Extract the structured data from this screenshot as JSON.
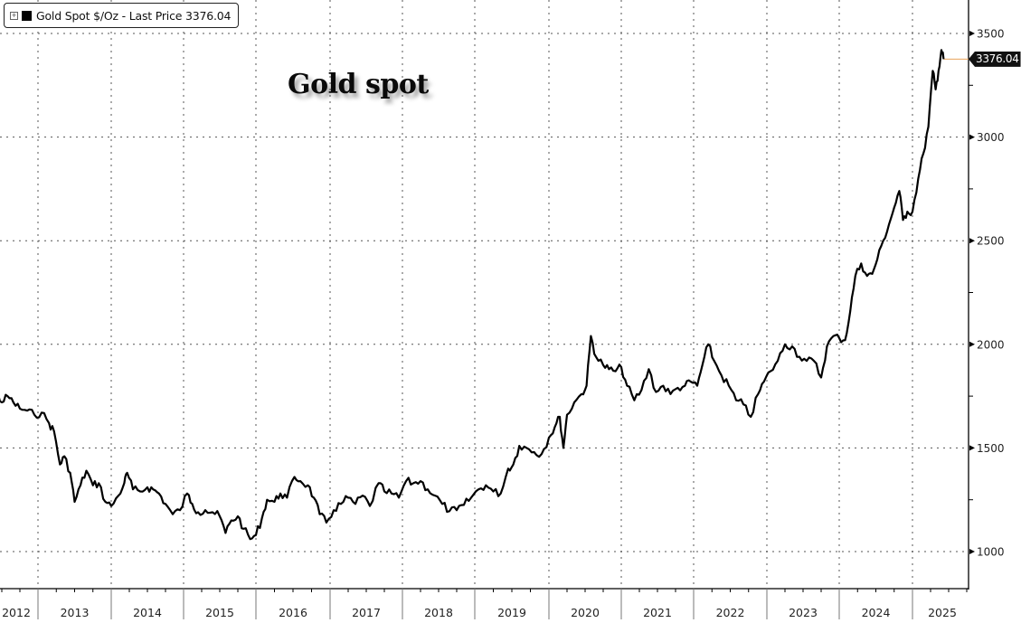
{
  "legend": {
    "expand_icon": "plus-box-icon",
    "label": "Gold Spot $/Oz - Last Price 3376.04",
    "swatch_color": "#000000"
  },
  "title": "Gold spot",
  "last_price_tag": "3376.04",
  "colors": {
    "line": "#000000",
    "last_price_line": "#e8a35a",
    "grid": "#555555",
    "axis": "#000000",
    "background": "#ffffff"
  },
  "chart_data": {
    "type": "line",
    "title": "Gold spot",
    "series": [
      {
        "name": "Gold Spot $/Oz",
        "last_value": 3376.04,
        "points": [
          {
            "x": 2012.0,
            "y": 1590
          },
          {
            "x": 2012.1,
            "y": 1640
          },
          {
            "x": 2012.2,
            "y": 1660
          },
          {
            "x": 2012.28,
            "y": 1700
          },
          {
            "x": 2012.35,
            "y": 1780
          },
          {
            "x": 2012.42,
            "y": 1770
          },
          {
            "x": 2012.5,
            "y": 1720
          },
          {
            "x": 2012.58,
            "y": 1750
          },
          {
            "x": 2012.66,
            "y": 1720
          },
          {
            "x": 2012.75,
            "y": 1690
          },
          {
            "x": 2012.85,
            "y": 1680
          },
          {
            "x": 2012.95,
            "y": 1660
          },
          {
            "x": 2013.05,
            "y": 1670
          },
          {
            "x": 2013.15,
            "y": 1620
          },
          {
            "x": 2013.22,
            "y": 1580
          },
          {
            "x": 2013.3,
            "y": 1420
          },
          {
            "x": 2013.36,
            "y": 1460
          },
          {
            "x": 2013.44,
            "y": 1380
          },
          {
            "x": 2013.5,
            "y": 1240
          },
          {
            "x": 2013.58,
            "y": 1320
          },
          {
            "x": 2013.66,
            "y": 1390
          },
          {
            "x": 2013.75,
            "y": 1320
          },
          {
            "x": 2013.83,
            "y": 1330
          },
          {
            "x": 2013.92,
            "y": 1240
          },
          {
            "x": 2014.0,
            "y": 1220
          },
          {
            "x": 2014.1,
            "y": 1270
          },
          {
            "x": 2014.18,
            "y": 1330
          },
          {
            "x": 2014.22,
            "y": 1380
          },
          {
            "x": 2014.3,
            "y": 1300
          },
          {
            "x": 2014.4,
            "y": 1290
          },
          {
            "x": 2014.5,
            "y": 1310
          },
          {
            "x": 2014.58,
            "y": 1300
          },
          {
            "x": 2014.66,
            "y": 1280
          },
          {
            "x": 2014.75,
            "y": 1230
          },
          {
            "x": 2014.85,
            "y": 1180
          },
          {
            "x": 2014.95,
            "y": 1200
          },
          {
            "x": 2015.05,
            "y": 1280
          },
          {
            "x": 2015.12,
            "y": 1230
          },
          {
            "x": 2015.2,
            "y": 1190
          },
          {
            "x": 2015.3,
            "y": 1200
          },
          {
            "x": 2015.4,
            "y": 1190
          },
          {
            "x": 2015.5,
            "y": 1170
          },
          {
            "x": 2015.58,
            "y": 1090
          },
          {
            "x": 2015.66,
            "y": 1150
          },
          {
            "x": 2015.75,
            "y": 1170
          },
          {
            "x": 2015.83,
            "y": 1110
          },
          {
            "x": 2015.92,
            "y": 1060
          },
          {
            "x": 2016.0,
            "y": 1080
          },
          {
            "x": 2016.08,
            "y": 1160
          },
          {
            "x": 2016.15,
            "y": 1250
          },
          {
            "x": 2016.25,
            "y": 1240
          },
          {
            "x": 2016.33,
            "y": 1280
          },
          {
            "x": 2016.42,
            "y": 1260
          },
          {
            "x": 2016.52,
            "y": 1360
          },
          {
            "x": 2016.6,
            "y": 1340
          },
          {
            "x": 2016.7,
            "y": 1320
          },
          {
            "x": 2016.78,
            "y": 1260
          },
          {
            "x": 2016.86,
            "y": 1180
          },
          {
            "x": 2016.95,
            "y": 1140
          },
          {
            "x": 2017.05,
            "y": 1200
          },
          {
            "x": 2017.15,
            "y": 1230
          },
          {
            "x": 2017.25,
            "y": 1260
          },
          {
            "x": 2017.35,
            "y": 1230
          },
          {
            "x": 2017.45,
            "y": 1270
          },
          {
            "x": 2017.55,
            "y": 1220
          },
          {
            "x": 2017.67,
            "y": 1330
          },
          {
            "x": 2017.75,
            "y": 1290
          },
          {
            "x": 2017.85,
            "y": 1280
          },
          {
            "x": 2017.95,
            "y": 1260
          },
          {
            "x": 2018.05,
            "y": 1340
          },
          {
            "x": 2018.15,
            "y": 1330
          },
          {
            "x": 2018.25,
            "y": 1340
          },
          {
            "x": 2018.35,
            "y": 1300
          },
          {
            "x": 2018.45,
            "y": 1270
          },
          {
            "x": 2018.55,
            "y": 1230
          },
          {
            "x": 2018.65,
            "y": 1195
          },
          {
            "x": 2018.75,
            "y": 1200
          },
          {
            "x": 2018.85,
            "y": 1225
          },
          {
            "x": 2018.95,
            "y": 1260
          },
          {
            "x": 2019.05,
            "y": 1300
          },
          {
            "x": 2019.15,
            "y": 1320
          },
          {
            "x": 2019.25,
            "y": 1290
          },
          {
            "x": 2019.35,
            "y": 1280
          },
          {
            "x": 2019.45,
            "y": 1400
          },
          {
            "x": 2019.52,
            "y": 1420
          },
          {
            "x": 2019.6,
            "y": 1510
          },
          {
            "x": 2019.7,
            "y": 1500
          },
          {
            "x": 2019.8,
            "y": 1480
          },
          {
            "x": 2019.9,
            "y": 1470
          },
          {
            "x": 2020.0,
            "y": 1550
          },
          {
            "x": 2020.08,
            "y": 1600
          },
          {
            "x": 2020.15,
            "y": 1650
          },
          {
            "x": 2020.2,
            "y": 1500
          },
          {
            "x": 2020.25,
            "y": 1660
          },
          {
            "x": 2020.35,
            "y": 1720
          },
          {
            "x": 2020.45,
            "y": 1760
          },
          {
            "x": 2020.52,
            "y": 1800
          },
          {
            "x": 2020.58,
            "y": 2040
          },
          {
            "x": 2020.65,
            "y": 1940
          },
          {
            "x": 2020.75,
            "y": 1900
          },
          {
            "x": 2020.83,
            "y": 1880
          },
          {
            "x": 2020.92,
            "y": 1870
          },
          {
            "x": 2021.0,
            "y": 1890
          },
          {
            "x": 2021.08,
            "y": 1800
          },
          {
            "x": 2021.18,
            "y": 1730
          },
          {
            "x": 2021.28,
            "y": 1780
          },
          {
            "x": 2021.38,
            "y": 1880
          },
          {
            "x": 2021.48,
            "y": 1770
          },
          {
            "x": 2021.58,
            "y": 1800
          },
          {
            "x": 2021.68,
            "y": 1760
          },
          {
            "x": 2021.78,
            "y": 1790
          },
          {
            "x": 2021.88,
            "y": 1800
          },
          {
            "x": 2021.96,
            "y": 1820
          },
          {
            "x": 2022.05,
            "y": 1800
          },
          {
            "x": 2022.12,
            "y": 1900
          },
          {
            "x": 2022.2,
            "y": 2000
          },
          {
            "x": 2022.28,
            "y": 1920
          },
          {
            "x": 2022.38,
            "y": 1850
          },
          {
            "x": 2022.48,
            "y": 1800
          },
          {
            "x": 2022.58,
            "y": 1730
          },
          {
            "x": 2022.68,
            "y": 1710
          },
          {
            "x": 2022.78,
            "y": 1650
          },
          {
            "x": 2022.88,
            "y": 1760
          },
          {
            "x": 2022.96,
            "y": 1820
          },
          {
            "x": 2023.05,
            "y": 1870
          },
          {
            "x": 2023.15,
            "y": 1920
          },
          {
            "x": 2023.25,
            "y": 2000
          },
          {
            "x": 2023.35,
            "y": 1990
          },
          {
            "x": 2023.45,
            "y": 1940
          },
          {
            "x": 2023.55,
            "y": 1920
          },
          {
            "x": 2023.65,
            "y": 1920
          },
          {
            "x": 2023.75,
            "y": 1840
          },
          {
            "x": 2023.83,
            "y": 1990
          },
          {
            "x": 2023.92,
            "y": 2040
          },
          {
            "x": 2024.0,
            "y": 2030
          },
          {
            "x": 2024.08,
            "y": 2020
          },
          {
            "x": 2024.15,
            "y": 2160
          },
          {
            "x": 2024.22,
            "y": 2330
          },
          {
            "x": 2024.3,
            "y": 2390
          },
          {
            "x": 2024.38,
            "y": 2330
          },
          {
            "x": 2024.45,
            "y": 2340
          },
          {
            "x": 2024.52,
            "y": 2410
          },
          {
            "x": 2024.6,
            "y": 2500
          },
          {
            "x": 2024.68,
            "y": 2580
          },
          {
            "x": 2024.75,
            "y": 2660
          },
          {
            "x": 2024.82,
            "y": 2740
          },
          {
            "x": 2024.87,
            "y": 2600
          },
          {
            "x": 2024.93,
            "y": 2640
          },
          {
            "x": 2025.0,
            "y": 2640
          },
          {
            "x": 2025.08,
            "y": 2800
          },
          {
            "x": 2025.15,
            "y": 2920
          },
          {
            "x": 2025.22,
            "y": 3050
          },
          {
            "x": 2025.28,
            "y": 3320
          },
          {
            "x": 2025.32,
            "y": 3230
          },
          {
            "x": 2025.36,
            "y": 3320
          },
          {
            "x": 2025.4,
            "y": 3420
          },
          {
            "x": 2025.43,
            "y": 3376.04
          }
        ]
      }
    ],
    "xlabel": "",
    "ylabel": "",
    "x_tick_labels": [
      "2012",
      "2013",
      "2014",
      "2015",
      "2016",
      "2017",
      "2018",
      "2019",
      "2020",
      "2021",
      "2022",
      "2023",
      "2024",
      "2025"
    ],
    "y_ticks": [
      1000,
      1500,
      2000,
      2500,
      3000,
      3500
    ],
    "y_tick_labels": [
      "1000",
      "1500",
      "2000",
      "2500",
      "3000",
      "3500"
    ],
    "xlim": [
      2012.0,
      2025.77
    ],
    "ylim": [
      845,
      3640
    ],
    "grid": true,
    "grid_style": "dotted",
    "legend_position": "top-left",
    "y_axis_position": "right",
    "annotations": [
      {
        "text": "3376.04",
        "type": "last-price-tag",
        "y": 3376.04
      }
    ]
  }
}
